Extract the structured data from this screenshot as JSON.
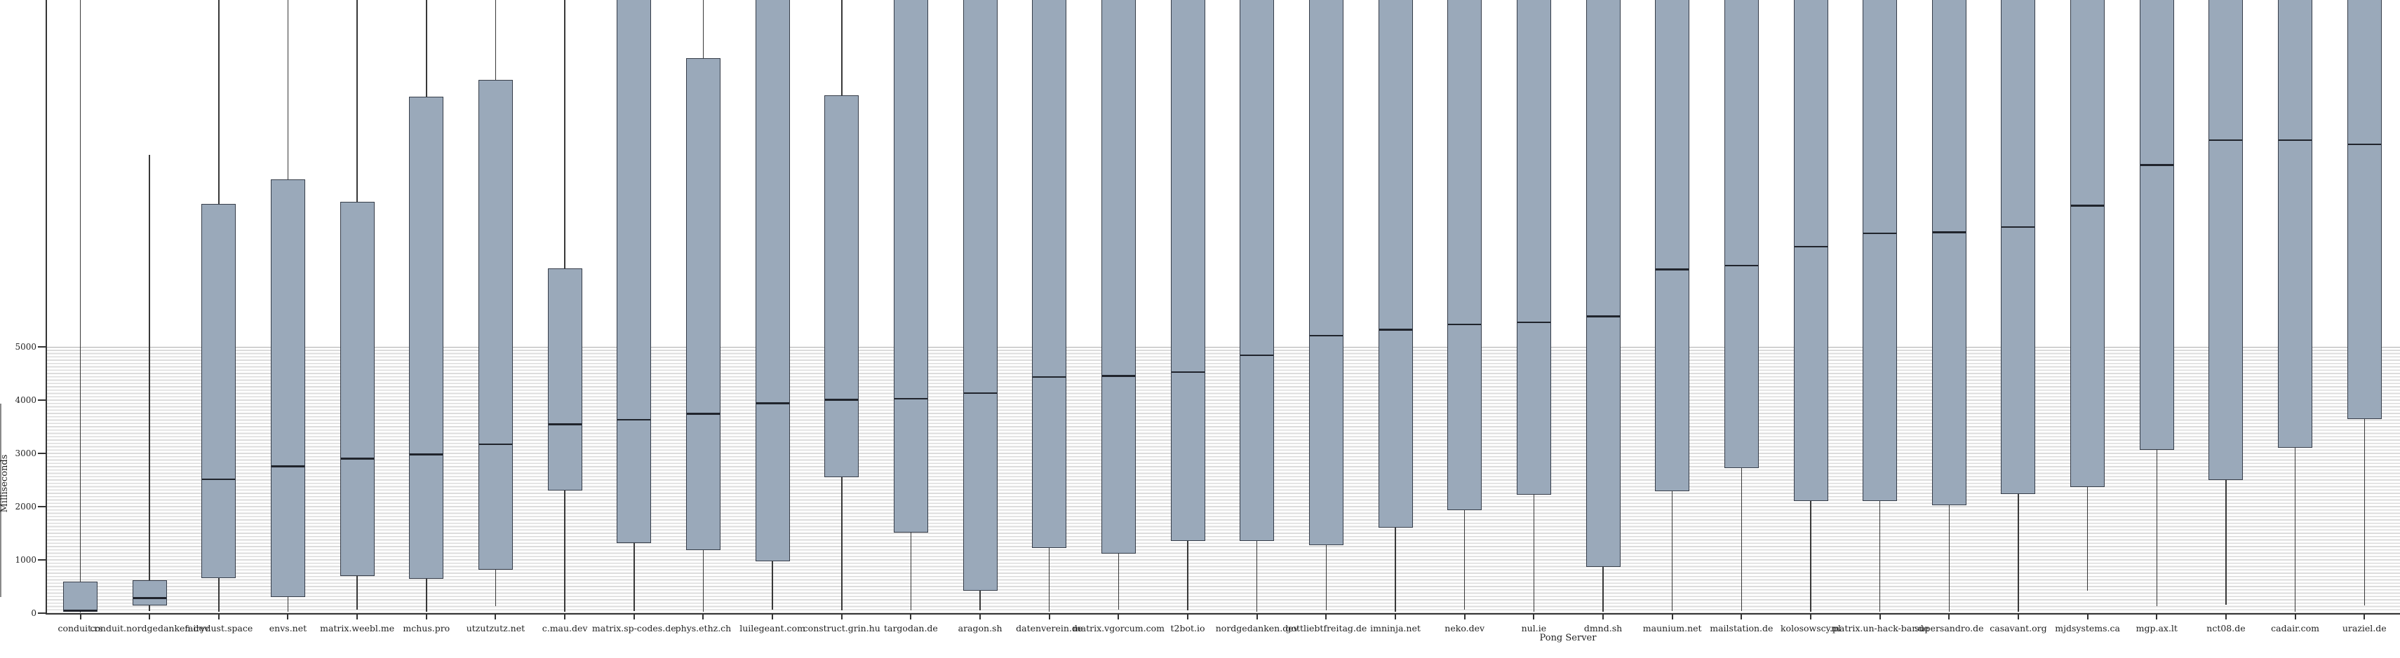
{
  "page": {
    "background": "#ffffff"
  },
  "chart_data": {
    "type": "boxplot",
    "title": "",
    "xlabel": "Pong Server",
    "ylabel": "Milliseconds",
    "y_ticks": [
      0,
      1000,
      2000,
      3000,
      4000,
      5000
    ],
    "y_axis_units": "ms",
    "grid": "fine horizontal stripe band from 0 to 5000 ms, plain white above",
    "legend_position": "none",
    "visible_value_ceiling": 11550,
    "note_on_nulls": "null q3/high means the box/whisker is cut off by the top edge of the image",
    "categories": [
      "conduit.rs",
      "conduit.nordgedanken.dev",
      "fairydust.space",
      "envs.net",
      "matrix.weebl.me",
      "mchus.pro",
      "utzutzutz.net",
      "c.mau.dev",
      "matrix.sp-codes.de",
      "phys.ethz.ch",
      "luilegeant.com",
      "construct.grin.hu",
      "targodan.de",
      "aragon.sh",
      "datenverein.de",
      "matrix.vgorcum.com",
      "t2bot.io",
      "nordgedanken.dev",
      "gottliebtfreitag.de",
      "imninja.net",
      "neko.dev",
      "nul.ie",
      "dmnd.sh",
      "maunium.net",
      "mailstation.de",
      "kolosowscy.pl",
      "matrix.un-hack-bar.de",
      "supersandro.de",
      "casavant.org",
      "mjdsystems.ca",
      "mgp.ax.lt",
      "nct08.de",
      "cadair.com",
      "uraziel.de"
    ],
    "series": [
      {
        "label": "conduit.rs",
        "low": 10,
        "q1": 20,
        "median": 45,
        "q3": 590,
        "high": null
      },
      {
        "label": "conduit.nordgedanken.dev",
        "low": 40,
        "q1": 150,
        "median": 280,
        "q3": 620,
        "high": 8600
      },
      {
        "label": "fairydust.space",
        "low": 30,
        "q1": 660,
        "median": 2510,
        "q3": 7690,
        "high": null
      },
      {
        "label": "envs.net",
        "low": 20,
        "q1": 300,
        "median": 2750,
        "q3": 8150,
        "high": null
      },
      {
        "label": "matrix.weebl.me",
        "low": 65,
        "q1": 700,
        "median": 2900,
        "q3": 7720,
        "high": null
      },
      {
        "label": "mchus.pro",
        "low": 20,
        "q1": 650,
        "median": 2980,
        "q3": 9700,
        "high": null
      },
      {
        "label": "utzutzutz.net",
        "low": 130,
        "q1": 820,
        "median": 3170,
        "q3": 10010,
        "high": null
      },
      {
        "label": "c.mau.dev",
        "low": 30,
        "q1": 2300,
        "median": 3540,
        "q3": 6480,
        "high": null
      },
      {
        "label": "matrix.sp-codes.de",
        "low": 40,
        "q1": 1320,
        "median": 3630,
        "q3": null,
        "high": null
      },
      {
        "label": "phys.ethz.ch",
        "low": 30,
        "q1": 1190,
        "median": 3740,
        "q3": 10420,
        "high": null
      },
      {
        "label": "luilegeant.com",
        "low": 60,
        "q1": 970,
        "median": 3940,
        "q3": null,
        "high": null
      },
      {
        "label": "construct.grin.hu",
        "low": 50,
        "q1": 2550,
        "median": 4000,
        "q3": 9720,
        "high": null
      },
      {
        "label": "targodan.de",
        "low": 50,
        "q1": 1510,
        "median": 4020,
        "q3": null,
        "high": null
      },
      {
        "label": "aragon.sh",
        "low": 50,
        "q1": 420,
        "median": 4130,
        "q3": null,
        "high": null
      },
      {
        "label": "datenverein.de",
        "low": 30,
        "q1": 1230,
        "median": 4430,
        "q3": null,
        "high": null
      },
      {
        "label": "matrix.vgorcum.com",
        "low": 70,
        "q1": 1120,
        "median": 4450,
        "q3": null,
        "high": null
      },
      {
        "label": "t2bot.io",
        "low": 50,
        "q1": 1350,
        "median": 4520,
        "q3": null,
        "high": null
      },
      {
        "label": "nordgedanken.dev",
        "low": 20,
        "q1": 1350,
        "median": 4840,
        "q3": null,
        "high": null
      },
      {
        "label": "gottliebtfreitag.de",
        "low": 50,
        "q1": 1280,
        "median": 5210,
        "q3": null,
        "high": null
      },
      {
        "label": "imninja.net",
        "low": 20,
        "q1": 1610,
        "median": 5320,
        "q3": null,
        "high": null
      },
      {
        "label": "neko.dev",
        "low": 60,
        "q1": 1930,
        "median": 5420,
        "q3": null,
        "high": null
      },
      {
        "label": "nul.ie",
        "low": 30,
        "q1": 2230,
        "median": 5460,
        "q3": null,
        "high": null
      },
      {
        "label": "dmnd.sh",
        "low": 30,
        "q1": 870,
        "median": 5570,
        "q3": null,
        "high": null
      },
      {
        "label": "maunium.net",
        "low": 40,
        "q1": 2290,
        "median": 6450,
        "q3": null,
        "high": null
      },
      {
        "label": "mailstation.de",
        "low": 40,
        "q1": 2720,
        "median": 6520,
        "q3": null,
        "high": null
      },
      {
        "label": "kolosowscy.pl",
        "low": 20,
        "q1": 2100,
        "median": 6880,
        "q3": null,
        "high": null
      },
      {
        "label": "matrix.un-hack-bar.de",
        "low": 30,
        "q1": 2100,
        "median": 7130,
        "q3": null,
        "high": null
      },
      {
        "label": "supersandro.de",
        "low": 20,
        "q1": 2020,
        "median": 7150,
        "q3": null,
        "high": null
      },
      {
        "label": "casavant.org",
        "low": 20,
        "q1": 2240,
        "median": 7250,
        "q3": null,
        "high": null
      },
      {
        "label": "mjdsystems.ca",
        "low": 420,
        "q1": 2370,
        "median": 7650,
        "q3": null,
        "high": null
      },
      {
        "label": "mgp.ax.lt",
        "low": 130,
        "q1": 3070,
        "median": 8410,
        "q3": null,
        "high": null
      },
      {
        "label": "nct08.de",
        "low": 160,
        "q1": 2500,
        "median": 8880,
        "q3": null,
        "high": null
      },
      {
        "label": "cadair.com",
        "low": 20,
        "q1": 3110,
        "median": 8880,
        "q3": null,
        "high": null
      },
      {
        "label": "uraziel.de",
        "low": 150,
        "q1": 3650,
        "median": 8800,
        "q3": null,
        "high": null
      }
    ]
  },
  "colors": {
    "box_fill": "#9aa9ba",
    "box_border": "#363d49",
    "median_line": "#20242c",
    "whisker": "#383838",
    "axis": "#333333",
    "band_stripe": "#dcdcdc",
    "band_top_line": "#adadad",
    "text": "#222222"
  }
}
